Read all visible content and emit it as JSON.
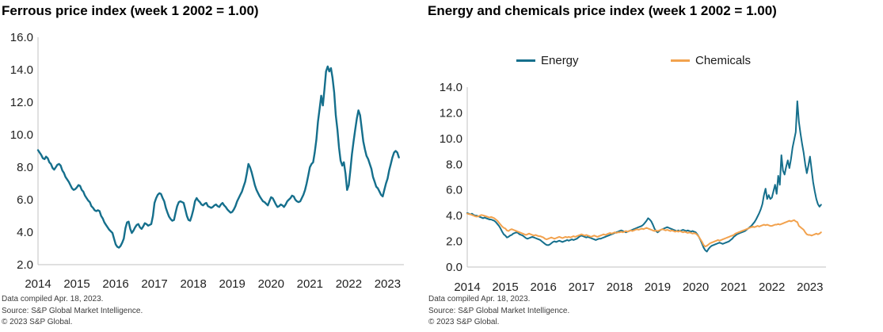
{
  "style": {
    "axis_color": "#c0c0c0",
    "tick_label_color": "#1f1f1f",
    "title_color": "#000000",
    "footnote_color": "#3c3c3c",
    "background": "#ffffff"
  },
  "chart_data": [
    {
      "type": "line",
      "title": "Ferrous price index (week 1 2002 = 1.00)",
      "xlabel": "",
      "ylabel": "",
      "ylim": [
        2,
        16
      ],
      "xlim": [
        2014,
        2023.42
      ],
      "grid": false,
      "y_tick_labels": [
        "16.0",
        "14.0",
        "12.0",
        "10.0",
        "8.0",
        "6.0",
        "4.0",
        "2.0"
      ],
      "x_tick_labels": [
        "2014",
        "2015",
        "2016",
        "2017",
        "2018",
        "2019",
        "2020",
        "2021",
        "2022",
        "2023"
      ],
      "series": [
        {
          "name": "Ferrous",
          "color": "#156f8c",
          "x_start": 2014,
          "x_step": 0.0416667,
          "values": [
            9.05,
            8.9,
            8.75,
            8.55,
            8.5,
            8.65,
            8.55,
            8.3,
            8.2,
            7.95,
            7.85,
            8.0,
            8.15,
            8.2,
            8.1,
            7.8,
            7.65,
            7.4,
            7.25,
            7.1,
            6.9,
            6.7,
            6.6,
            6.65,
            6.75,
            6.9,
            6.85,
            6.6,
            6.5,
            6.25,
            6.1,
            5.95,
            5.85,
            5.6,
            5.5,
            5.35,
            5.3,
            5.35,
            5.3,
            5.0,
            4.85,
            4.6,
            4.45,
            4.3,
            4.15,
            4.05,
            3.95,
            3.6,
            3.25,
            3.1,
            3.05,
            3.15,
            3.35,
            3.6,
            4.25,
            4.6,
            4.65,
            4.2,
            3.95,
            4.1,
            4.3,
            4.45,
            4.5,
            4.3,
            4.2,
            4.35,
            4.55,
            4.5,
            4.4,
            4.45,
            4.5,
            5.0,
            5.8,
            6.1,
            6.3,
            6.4,
            6.35,
            6.1,
            5.9,
            5.5,
            5.2,
            4.95,
            4.8,
            4.7,
            4.75,
            5.2,
            5.6,
            5.85,
            5.9,
            5.85,
            5.8,
            5.4,
            5.0,
            4.75,
            4.7,
            5.0,
            5.4,
            5.9,
            6.1,
            5.95,
            5.85,
            5.7,
            5.65,
            5.75,
            5.8,
            5.6,
            5.55,
            5.5,
            5.55,
            5.65,
            5.7,
            5.6,
            5.55,
            5.7,
            5.8,
            5.65,
            5.55,
            5.4,
            5.3,
            5.2,
            5.25,
            5.4,
            5.6,
            5.9,
            6.1,
            6.3,
            6.5,
            6.8,
            7.1,
            7.6,
            8.2,
            8.0,
            7.7,
            7.3,
            6.9,
            6.6,
            6.4,
            6.2,
            6.05,
            5.9,
            5.85,
            5.75,
            5.65,
            5.9,
            6.15,
            6.1,
            5.9,
            5.7,
            5.55,
            5.6,
            5.7,
            5.65,
            5.55,
            5.7,
            5.9,
            6.0,
            6.1,
            6.25,
            6.2,
            6.0,
            5.9,
            5.85,
            5.9,
            6.1,
            6.3,
            6.6,
            7.0,
            7.5,
            8.0,
            8.2,
            8.3,
            8.9,
            9.7,
            10.8,
            11.6,
            12.4,
            11.8,
            12.8,
            13.9,
            14.2,
            13.9,
            14.1,
            13.5,
            12.6,
            11.2,
            10.3,
            9.2,
            8.4,
            8.1,
            8.3,
            7.6,
            6.6,
            6.9,
            7.8,
            8.8,
            9.6,
            10.3,
            11.0,
            11.5,
            11.2,
            10.4,
            9.6,
            9.1,
            8.7,
            8.5,
            8.2,
            7.9,
            7.4,
            7.1,
            6.8,
            6.7,
            6.5,
            6.3,
            6.2,
            6.6,
            7.0,
            7.3,
            7.8,
            8.2,
            8.6,
            8.9,
            9.0,
            8.9,
            8.6
          ]
        }
      ],
      "footnotes": [
        "Data compiled Apr. 18, 2023.",
        "Source: S&P Global Market Intelligence.",
        "© 2023 S&P Global."
      ]
    },
    {
      "type": "line",
      "title": "Energy and chemicals price index (week 1 2002 = 1.00)",
      "xlabel": "",
      "ylabel": "",
      "ylim": [
        0,
        14
      ],
      "xlim": [
        2014,
        2023.42
      ],
      "grid": false,
      "legend_position": "top",
      "y_tick_labels": [
        "14.0",
        "12.0",
        "10.0",
        "8.0",
        "6.0",
        "4.0",
        "2.0",
        "0.0"
      ],
      "x_tick_labels": [
        "2014",
        "2015",
        "2016",
        "2017",
        "2018",
        "2019",
        "2020",
        "2021",
        "2022",
        "2023"
      ],
      "series": [
        {
          "name": "Energy",
          "color": "#156f8c",
          "x_start": 2014,
          "x_step": 0.0416667,
          "values": [
            4.2,
            4.15,
            4.1,
            4.15,
            4.05,
            4.0,
            4.0,
            3.95,
            3.9,
            3.85,
            3.8,
            3.85,
            3.8,
            3.75,
            3.7,
            3.7,
            3.65,
            3.6,
            3.5,
            3.35,
            3.2,
            3.0,
            2.75,
            2.55,
            2.45,
            2.3,
            2.35,
            2.45,
            2.5,
            2.6,
            2.65,
            2.7,
            2.65,
            2.55,
            2.5,
            2.45,
            2.35,
            2.25,
            2.2,
            2.25,
            2.3,
            2.35,
            2.3,
            2.25,
            2.2,
            2.15,
            2.1,
            2.0,
            1.9,
            1.8,
            1.72,
            1.7,
            1.75,
            1.85,
            1.95,
            2.0,
            1.95,
            2.0,
            2.05,
            2.0,
            1.95,
            2.0,
            2.05,
            2.1,
            2.05,
            2.1,
            2.15,
            2.1,
            2.15,
            2.2,
            2.3,
            2.4,
            2.45,
            2.4,
            2.35,
            2.3,
            2.35,
            2.3,
            2.25,
            2.2,
            2.15,
            2.1,
            2.15,
            2.2,
            2.2,
            2.25,
            2.3,
            2.35,
            2.4,
            2.45,
            2.5,
            2.55,
            2.6,
            2.65,
            2.7,
            2.75,
            2.8,
            2.85,
            2.8,
            2.75,
            2.7,
            2.75,
            2.8,
            2.85,
            2.9,
            2.95,
            3.0,
            3.05,
            3.1,
            3.15,
            3.2,
            3.3,
            3.45,
            3.6,
            3.8,
            3.7,
            3.55,
            3.3,
            3.0,
            2.8,
            2.7,
            2.8,
            2.9,
            2.95,
            3.0,
            3.05,
            3.1,
            3.05,
            3.0,
            2.95,
            2.9,
            2.85,
            2.8,
            2.85,
            2.8,
            2.85,
            2.9,
            2.85,
            2.8,
            2.85,
            2.8,
            2.75,
            2.8,
            2.75,
            2.7,
            2.55,
            2.35,
            2.1,
            1.8,
            1.5,
            1.3,
            1.2,
            1.4,
            1.55,
            1.65,
            1.7,
            1.75,
            1.8,
            1.85,
            1.9,
            1.85,
            1.8,
            1.85,
            1.9,
            1.95,
            2.0,
            2.1,
            2.2,
            2.35,
            2.45,
            2.55,
            2.6,
            2.65,
            2.7,
            2.75,
            2.8,
            2.9,
            3.0,
            3.1,
            3.2,
            3.35,
            3.5,
            3.7,
            3.95,
            4.2,
            4.5,
            4.9,
            5.6,
            6.1,
            5.3,
            5.6,
            5.3,
            5.4,
            5.9,
            6.4,
            5.7,
            7.1,
            6.4,
            8.7,
            7.5,
            7.2,
            7.8,
            8.3,
            7.7,
            8.4,
            9.3,
            9.9,
            10.5,
            12.9,
            11.3,
            10.4,
            9.6,
            8.9,
            8.0,
            7.3,
            7.9,
            8.6,
            7.6,
            6.6,
            5.9,
            5.3,
            4.9,
            4.7,
            4.85
          ]
        },
        {
          "name": "Chemicals",
          "color": "#f2a24e",
          "x_start": 2014,
          "x_step": 0.0416667,
          "values": [
            4.15,
            4.12,
            4.1,
            4.05,
            4.0,
            3.95,
            3.92,
            3.95,
            4.0,
            4.05,
            4.02,
            3.98,
            3.95,
            3.9,
            3.85,
            3.9,
            3.85,
            3.8,
            3.7,
            3.6,
            3.45,
            3.3,
            3.15,
            3.05,
            3.0,
            2.85,
            2.8,
            2.9,
            2.95,
            2.9,
            2.85,
            2.8,
            2.75,
            2.7,
            2.65,
            2.6,
            2.55,
            2.5,
            2.55,
            2.6,
            2.55,
            2.5,
            2.45,
            2.5,
            2.45,
            2.4,
            2.4,
            2.35,
            2.3,
            2.2,
            2.15,
            2.2,
            2.25,
            2.3,
            2.25,
            2.2,
            2.25,
            2.3,
            2.35,
            2.3,
            2.25,
            2.3,
            2.35,
            2.3,
            2.35,
            2.3,
            2.35,
            2.4,
            2.35,
            2.4,
            2.45,
            2.5,
            2.55,
            2.5,
            2.45,
            2.5,
            2.45,
            2.4,
            2.35,
            2.4,
            2.45,
            2.4,
            2.35,
            2.4,
            2.45,
            2.5,
            2.55,
            2.5,
            2.55,
            2.6,
            2.65,
            2.6,
            2.65,
            2.7,
            2.65,
            2.7,
            2.7,
            2.75,
            2.7,
            2.75,
            2.8,
            2.75,
            2.8,
            2.85,
            2.8,
            2.85,
            2.9,
            2.95,
            2.9,
            2.95,
            3.0,
            2.95,
            3.0,
            3.05,
            3.0,
            2.95,
            2.9,
            2.85,
            2.8,
            2.85,
            2.8,
            2.85,
            2.9,
            2.95,
            2.9,
            2.85,
            2.9,
            2.85,
            2.8,
            2.85,
            2.8,
            2.75,
            2.8,
            2.75,
            2.8,
            2.75,
            2.7,
            2.75,
            2.7,
            2.65,
            2.7,
            2.65,
            2.6,
            2.65,
            2.6,
            2.5,
            2.35,
            2.15,
            1.95,
            1.7,
            1.6,
            1.65,
            1.75,
            1.85,
            1.9,
            1.95,
            2.0,
            2.05,
            2.1,
            2.05,
            2.1,
            2.15,
            2.2,
            2.25,
            2.3,
            2.35,
            2.4,
            2.45,
            2.5,
            2.6,
            2.65,
            2.7,
            2.75,
            2.8,
            2.85,
            2.9,
            2.95,
            3.0,
            3.05,
            3.1,
            3.15,
            3.1,
            3.15,
            3.2,
            3.15,
            3.2,
            3.25,
            3.3,
            3.25,
            3.3,
            3.25,
            3.2,
            3.2,
            3.25,
            3.3,
            3.3,
            3.35,
            3.3,
            3.35,
            3.4,
            3.45,
            3.5,
            3.55,
            3.6,
            3.55,
            3.6,
            3.65,
            3.55,
            3.5,
            3.2,
            3.1,
            3.0,
            2.9,
            2.7,
            2.55,
            2.5,
            2.5,
            2.45,
            2.5,
            2.55,
            2.6,
            2.55,
            2.6,
            2.7
          ]
        }
      ],
      "footnotes": [
        "Data compiled Apr. 18, 2023.",
        "Source: S&P Global Market Intelligence.",
        "© 2023 S&P Global."
      ]
    }
  ]
}
